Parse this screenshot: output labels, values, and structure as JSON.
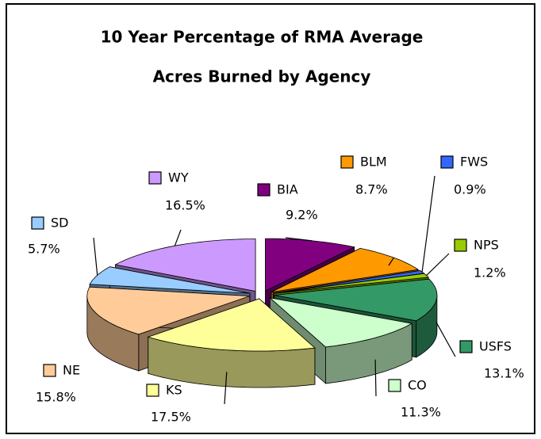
{
  "chart_data": {
    "type": "pie3d",
    "title": [
      "10 Year Percentage of RMA Average",
      "Acres Burned by Agency"
    ],
    "categories": [
      "BIA",
      "BLM",
      "FWS",
      "NPS",
      "USFS",
      "CO",
      "KS",
      "NE",
      "SD",
      "WY"
    ],
    "values": [
      9.2,
      8.7,
      0.9,
      1.2,
      13.1,
      11.3,
      17.5,
      15.8,
      5.7,
      16.5
    ],
    "value_labels": [
      "9.2%",
      "8.7%",
      "0.9%",
      "1.2%",
      "13.1%",
      "11.3%",
      "17.5%",
      "15.8%",
      "5.7%",
      "16.5%"
    ],
    "colors": [
      "#800080",
      "#ff9900",
      "#3366ff",
      "#99cc00",
      "#339966",
      "#ccffcc",
      "#ffff99",
      "#ffcc99",
      "#99ccff",
      "#cc99ff"
    ]
  }
}
